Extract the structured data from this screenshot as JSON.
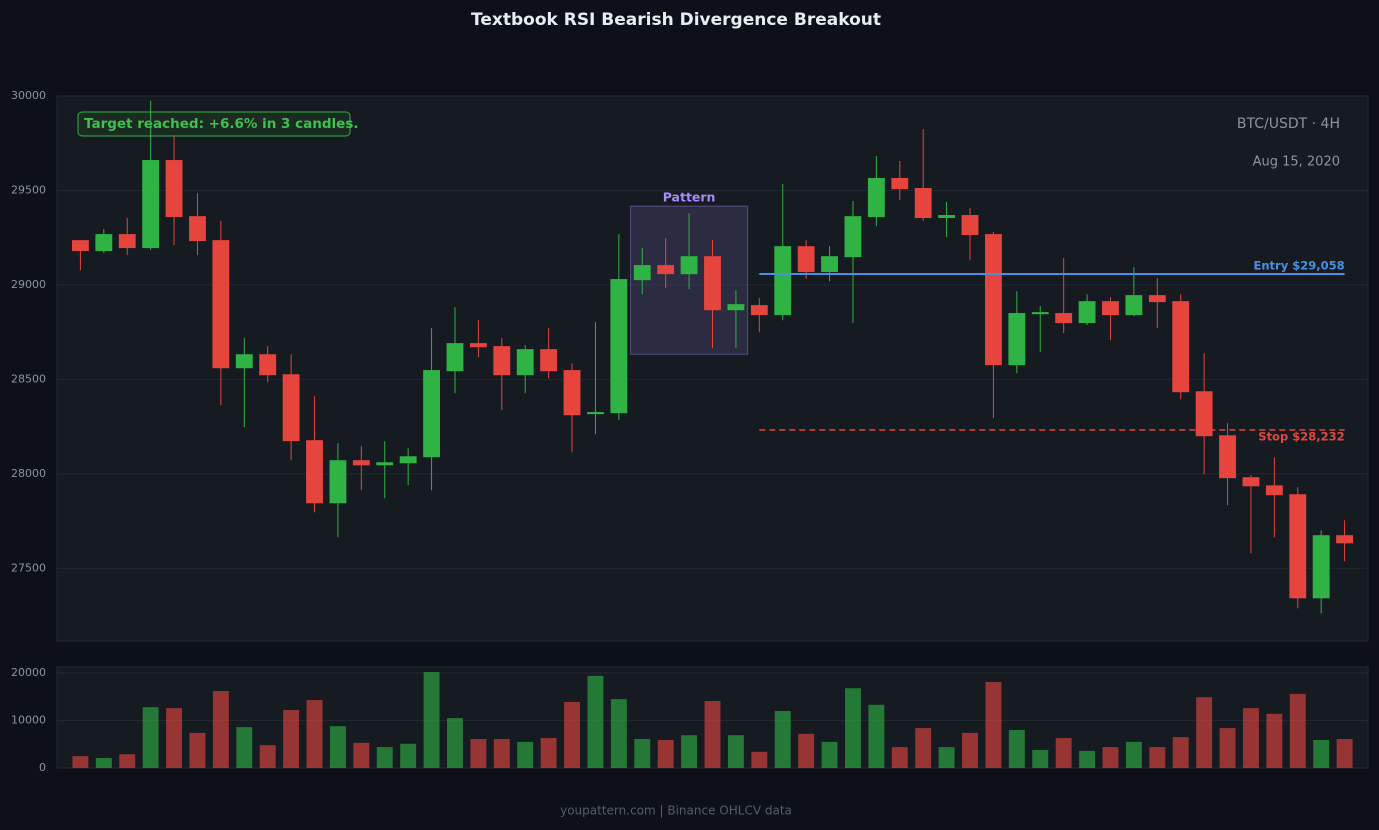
{
  "chart_data": [
    {
      "type": "candlestick",
      "title": "Textbook RSI Bearish Divergence Breakout",
      "symbol": "BTC/USDT · 4H",
      "date": "Aug 15, 2020",
      "open": [
        29237,
        29179,
        29269,
        29195,
        29661,
        29364,
        29237,
        28559,
        28633,
        28527,
        28178,
        27844,
        28072,
        28045,
        28056,
        28088,
        28543,
        28692,
        28676,
        28522,
        28660,
        28549,
        28316,
        28321,
        29025,
        29105,
        29057,
        29152,
        28866,
        28893,
        28840,
        29205,
        29068,
        29147,
        29359,
        29566,
        29513,
        29354,
        29370,
        29269,
        28575,
        28845,
        28851,
        28798,
        28914,
        28840,
        28946,
        28914,
        28437,
        28204,
        27982,
        27939,
        27892,
        27341,
        27675
      ],
      "high": [
        29237,
        29296,
        29354,
        29974,
        29793,
        29486,
        29338,
        28718,
        28676,
        28633,
        28411,
        28162,
        28146,
        28173,
        28135,
        28771,
        28882,
        28813,
        28718,
        28681,
        28771,
        28586,
        28803,
        29269,
        29195,
        29248,
        29380,
        29237,
        28972,
        28930,
        29534,
        29237,
        29205,
        29444,
        29682,
        29656,
        29825,
        29439,
        29407,
        29280,
        28967,
        28888,
        29142,
        28951,
        28935,
        29094,
        29036,
        28951,
        28639,
        28268,
        27993,
        28088,
        27929,
        27701,
        27754
      ],
      "low": [
        29078,
        29168,
        29158,
        29184,
        29211,
        29158,
        28363,
        28247,
        28485,
        28072,
        27796,
        27664,
        27913,
        27871,
        27940,
        27913,
        28427,
        28617,
        28337,
        28427,
        28506,
        28114,
        28210,
        28284,
        28951,
        28983,
        28978,
        28665,
        28665,
        28750,
        28813,
        29031,
        29020,
        28798,
        29311,
        29449,
        29338,
        29253,
        29131,
        28294,
        28533,
        28644,
        28745,
        28787,
        28708,
        28835,
        28771,
        28395,
        27998,
        27834,
        27579,
        27664,
        27288,
        27261,
        27537
      ],
      "close": [
        29179,
        29269,
        29195,
        29661,
        29359,
        29232,
        28559,
        28633,
        28522,
        28173,
        27844,
        28072,
        28045,
        28061,
        28093,
        28549,
        28692,
        28670,
        28522,
        28660,
        28543,
        28310,
        28327,
        29031,
        29105,
        29057,
        29152,
        28866,
        28898,
        28840,
        29205,
        29068,
        29152,
        29364,
        29566,
        29507,
        29354,
        29370,
        29264,
        28575,
        28851,
        28856,
        28798,
        28914,
        28840,
        28946,
        28909,
        28432,
        28199,
        27977,
        27934,
        27887,
        27341,
        27675,
        27632
      ],
      "up_color": "#2fb344",
      "down_color": "#e5453d",
      "ylim": [
        27115,
        30000
      ],
      "yticks": [
        27500,
        28000,
        28500,
        29000,
        29500,
        30000
      ],
      "grid": true,
      "pattern": {
        "label": "Pattern",
        "from": 24,
        "to": 28,
        "high": 29417,
        "low": 28633,
        "color": "#a78bfa"
      },
      "entry": {
        "value": 29058,
        "label": "Entry $29,058",
        "from": 29,
        "color": "#4a90e2"
      },
      "stop": {
        "value": 28232,
        "label": "Stop $28,232",
        "from": 29,
        "color": "#e5453d"
      },
      "annotation": "Target reached: +6.6% in 3 candles."
    },
    {
      "type": "volume",
      "values": [
        2500,
        2100,
        2900,
        12800,
        12600,
        7400,
        16200,
        8600,
        4800,
        12200,
        14300,
        8800,
        5300,
        4400,
        5100,
        20200,
        10500,
        6100,
        6100,
        5500,
        6300,
        13900,
        19400,
        14500,
        6100,
        5900,
        6900,
        14100,
        6900,
        3400,
        12000,
        7200,
        5500,
        16800,
        13300,
        4400,
        8400,
        4400,
        7400,
        18100,
        8000,
        3800,
        6300,
        3600,
        4400,
        5500,
        4400,
        6500,
        14900,
        8400,
        12600,
        11400,
        15600,
        5900,
        6100
      ],
      "ylim": [
        0,
        21260
      ],
      "yticks": [
        0,
        10000,
        20000
      ],
      "grid": true
    }
  ],
  "footer": "youpattern.com | Binance OHLCV data"
}
